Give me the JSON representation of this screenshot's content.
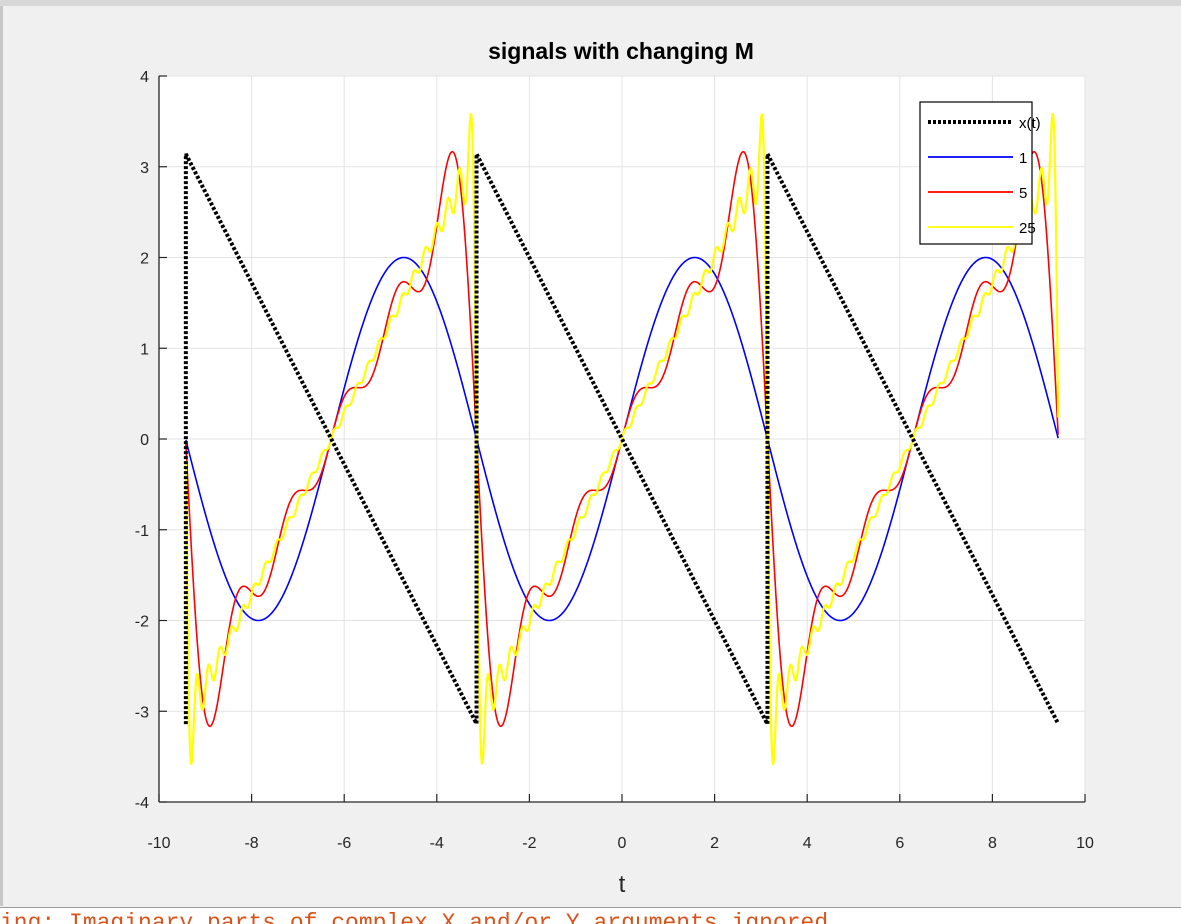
{
  "chart_data": {
    "type": "line",
    "title": "signals with changing M",
    "xlabel": "t",
    "ylabel": "",
    "xlim": [
      -10,
      10
    ],
    "ylim": [
      -4,
      4
    ],
    "xticks": [
      -10,
      -8,
      -6,
      -4,
      -2,
      0,
      2,
      4,
      6,
      8,
      10
    ],
    "yticks": [
      -4,
      -3,
      -2,
      -1,
      0,
      1,
      2,
      3,
      4
    ],
    "grid": true,
    "legend_location": "top-right",
    "t_range": [
      -9.42,
      9.42
    ],
    "series": [
      {
        "name": "x(t)",
        "kind": "sawtooth",
        "color": "#000000",
        "style": "dotted",
        "period": 6.283,
        "amplitude": 3.1416
      },
      {
        "name": "1",
        "kind": "fourier",
        "M": 1,
        "color": "#0000ff",
        "style": "solid"
      },
      {
        "name": "5",
        "kind": "fourier",
        "M": 5,
        "color": "#ff0000",
        "style": "solid"
      },
      {
        "name": "25",
        "kind": "fourier",
        "M": 25,
        "color": "#ffff00",
        "style": "solid"
      }
    ]
  },
  "console": {
    "text": "ing: Imaginary parts of complex X and/or Y arguments ignored"
  }
}
